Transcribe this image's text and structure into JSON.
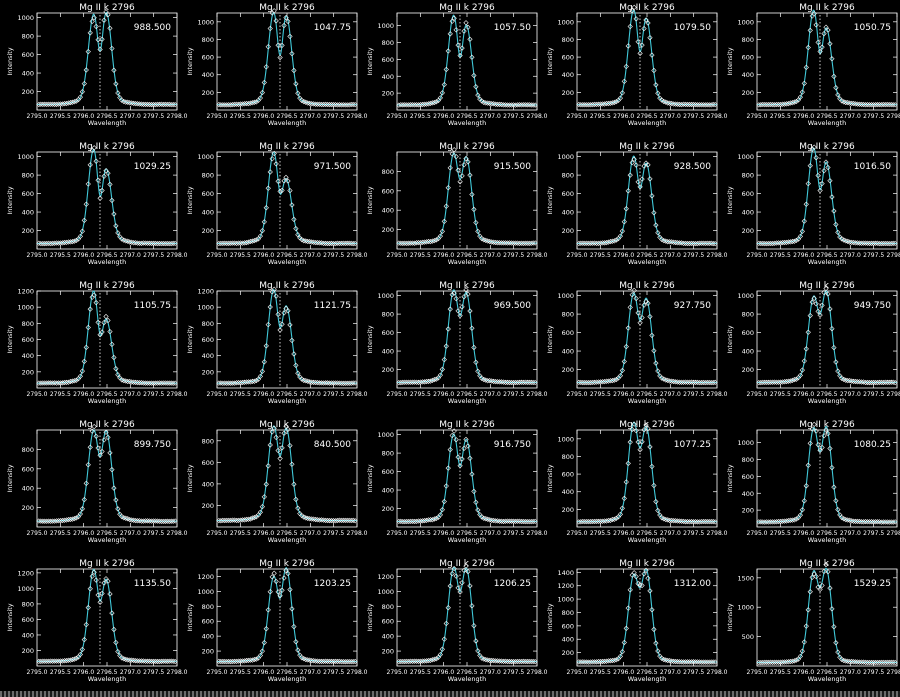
{
  "figure": {
    "panel_title": "Mg II k 2796",
    "xlabel": "Wavelength",
    "ylabel": "Intensity",
    "xticks": [
      "2795.0",
      "2795.5",
      "2796.0",
      "2796.5",
      "2797.0",
      "2797.5",
      "2798.0"
    ],
    "colors": {
      "background": "#000000",
      "axes": "#ffffff",
      "fit_line": "#40c8d8",
      "data_points": "#ffffff"
    }
  },
  "chart_data": [
    {
      "type": "line",
      "title": "Mg II k 2796",
      "value_label": "988.500",
      "xlabel": "Wavelength",
      "ylabel": "Intensity",
      "xlim": [
        2795.0,
        2798.0
      ],
      "ylim": [
        0,
        1050
      ],
      "yticks": [
        200,
        400,
        600,
        800,
        1000
      ],
      "peaks": [
        930,
        950
      ],
      "dip": 590,
      "continuum": 60,
      "center": 2796.35,
      "series": [
        {
          "values": []
        }
      ]
    },
    {
      "type": "line",
      "title": "Mg II k 2796",
      "value_label": "1047.75",
      "xlabel": "Wavelength",
      "ylabel": "Intensity",
      "xlim": [
        2795.0,
        2798.0
      ],
      "ylim": [
        0,
        1100
      ],
      "yticks": [
        200,
        400,
        600,
        800,
        1000
      ],
      "peaks": [
        1000,
        960
      ],
      "dip": 570,
      "continuum": 60,
      "center": 2796.35,
      "series": [
        {
          "values": []
        }
      ]
    },
    {
      "type": "line",
      "title": "Mg II k 2796",
      "value_label": "1057.50",
      "xlabel": "Wavelength",
      "ylabel": "Intensity",
      "xlim": [
        2795.0,
        2798.0
      ],
      "ylim": [
        0,
        1150
      ],
      "yticks": [
        200,
        400,
        600,
        800,
        1000
      ],
      "peaks": [
        1020,
        900
      ],
      "dip": 580,
      "continuum": 60,
      "center": 2796.35,
      "series": [
        {
          "values": []
        }
      ]
    },
    {
      "type": "line",
      "title": "Mg II k 2796",
      "value_label": "1079.50",
      "xlabel": "Wavelength",
      "ylabel": "Intensity",
      "xlim": [
        2795.0,
        2798.0
      ],
      "ylim": [
        0,
        1100
      ],
      "yticks": [
        200,
        400,
        600,
        800,
        1000
      ],
      "peaks": [
        1030,
        930
      ],
      "dip": 620,
      "continuum": 60,
      "center": 2796.35,
      "series": [
        {
          "values": []
        }
      ]
    },
    {
      "type": "line",
      "title": "Mg II k 2796",
      "value_label": "1050.75",
      "xlabel": "Wavelength",
      "ylabel": "Intensity",
      "xlim": [
        2795.0,
        2798.0
      ],
      "ylim": [
        0,
        1100
      ],
      "yticks": [
        200,
        400,
        600,
        800,
        1000
      ],
      "peaks": [
        1030,
        820
      ],
      "dip": 600,
      "continuum": 60,
      "center": 2796.35,
      "series": [
        {
          "values": []
        }
      ]
    },
    {
      "type": "line",
      "title": "Mg II k 2796",
      "value_label": "1029.25",
      "xlabel": "Wavelength",
      "ylabel": "Intensity",
      "xlim": [
        2795.0,
        2798.0
      ],
      "ylim": [
        0,
        1050
      ],
      "yticks": [
        200,
        400,
        600,
        800,
        1000
      ],
      "peaks": [
        980,
        760
      ],
      "dip": 520,
      "continuum": 60,
      "center": 2796.35,
      "series": [
        {
          "values": []
        }
      ]
    },
    {
      "type": "line",
      "title": "Mg II k 2796",
      "value_label": "971.500",
      "xlabel": "Wavelength",
      "ylabel": "Intensity",
      "xlim": [
        2795.0,
        2798.0
      ],
      "ylim": [
        0,
        1050
      ],
      "yticks": [
        200,
        400,
        600,
        800,
        1000
      ],
      "peaks": [
        950,
        650
      ],
      "dip": 560,
      "continuum": 60,
      "center": 2796.35,
      "series": [
        {
          "values": []
        }
      ]
    },
    {
      "type": "line",
      "title": "Mg II k 2796",
      "value_label": "915.500",
      "xlabel": "Wavelength",
      "ylabel": "Intensity",
      "xlim": [
        2795.0,
        2798.0
      ],
      "ylim": [
        0,
        1000
      ],
      "yticks": [
        200,
        400,
        600,
        800
      ],
      "peaks": [
        880,
        840
      ],
      "dip": 690,
      "continuum": 60,
      "center": 2796.35,
      "series": [
        {
          "values": []
        }
      ]
    },
    {
      "type": "line",
      "title": "Mg II k 2796",
      "value_label": "928.500",
      "xlabel": "Wavelength",
      "ylabel": "Intensity",
      "xlim": [
        2795.0,
        2798.0
      ],
      "ylim": [
        0,
        1050
      ],
      "yticks": [
        200,
        400,
        600,
        800,
        1000
      ],
      "peaks": [
        900,
        820
      ],
      "dip": 620,
      "continuum": 60,
      "center": 2796.35,
      "series": [
        {
          "values": []
        }
      ]
    },
    {
      "type": "line",
      "title": "Mg II k 2796",
      "value_label": "1016.50",
      "xlabel": "Wavelength",
      "ylabel": "Intensity",
      "xlim": [
        2795.0,
        2798.0
      ],
      "ylim": [
        0,
        1050
      ],
      "yticks": [
        200,
        400,
        600,
        800,
        1000
      ],
      "peaks": [
        990,
        830
      ],
      "dip": 600,
      "continuum": 60,
      "center": 2796.35,
      "series": [
        {
          "values": []
        }
      ]
    },
    {
      "type": "line",
      "title": "Mg II k 2796",
      "value_label": "1105.75",
      "xlabel": "Wavelength",
      "ylabel": "Intensity",
      "xlim": [
        2795.0,
        2798.0
      ],
      "ylim": [
        0,
        1200
      ],
      "yticks": [
        200,
        400,
        600,
        800,
        1000,
        1200
      ],
      "peaks": [
        1100,
        740
      ],
      "dip": 620,
      "continuum": 60,
      "center": 2796.35,
      "series": [
        {
          "values": []
        }
      ]
    },
    {
      "type": "line",
      "title": "Mg II k 2796",
      "value_label": "1121.75",
      "xlabel": "Wavelength",
      "ylabel": "Intensity",
      "xlim": [
        2795.0,
        2798.0
      ],
      "ylim": [
        0,
        1200
      ],
      "yticks": [
        200,
        400,
        600,
        800,
        1000,
        1200
      ],
      "peaks": [
        1110,
        900
      ],
      "dip": 720,
      "continuum": 60,
      "center": 2796.35,
      "series": [
        {
          "values": []
        }
      ]
    },
    {
      "type": "line",
      "title": "Mg II k 2796",
      "value_label": "969.500",
      "xlabel": "Wavelength",
      "ylabel": "Intensity",
      "xlim": [
        2795.0,
        2798.0
      ],
      "ylim": [
        0,
        1050
      ],
      "yticks": [
        200,
        400,
        600,
        800,
        1000
      ],
      "peaks": [
        950,
        920
      ],
      "dip": 760,
      "continuum": 60,
      "center": 2796.35,
      "series": [
        {
          "values": []
        }
      ]
    },
    {
      "type": "line",
      "title": "Mg II k 2796",
      "value_label": "927.750",
      "xlabel": "Wavelength",
      "ylabel": "Intensity",
      "xlim": [
        2795.0,
        2798.0
      ],
      "ylim": [
        0,
        1050
      ],
      "yticks": [
        200,
        400,
        600,
        800,
        1000
      ],
      "peaks": [
        920,
        860
      ],
      "dip": 700,
      "continuum": 60,
      "center": 2796.35,
      "series": [
        {
          "values": []
        }
      ]
    },
    {
      "type": "line",
      "title": "Mg II k 2796",
      "value_label": "949.750",
      "xlabel": "Wavelength",
      "ylabel": "Intensity",
      "xlim": [
        2795.0,
        2798.0
      ],
      "ylim": [
        0,
        1050
      ],
      "yticks": [
        200,
        400,
        600,
        800,
        1000
      ],
      "peaks": [
        880,
        940
      ],
      "dip": 780,
      "continuum": 60,
      "center": 2796.35,
      "series": [
        {
          "values": []
        }
      ]
    },
    {
      "type": "line",
      "title": "Mg II k 2796",
      "value_label": "899.750",
      "xlabel": "Wavelength",
      "ylabel": "Intensity",
      "xlim": [
        2795.0,
        2798.0
      ],
      "ylim": [
        0,
        1000
      ],
      "yticks": [
        200,
        400,
        600,
        800
      ],
      "peaks": [
        890,
        880
      ],
      "dip": 700,
      "continuum": 60,
      "center": 2796.35,
      "series": [
        {
          "values": []
        }
      ]
    },
    {
      "type": "line",
      "title": "Mg II k 2796",
      "value_label": "840.500",
      "xlabel": "Wavelength",
      "ylabel": "Intensity",
      "xlim": [
        2795.0,
        2798.0
      ],
      "ylim": [
        0,
        900
      ],
      "yticks": [
        200,
        400,
        600,
        800
      ],
      "peaks": [
        830,
        810
      ],
      "dip": 620,
      "continuum": 60,
      "center": 2796.35,
      "series": [
        {
          "values": []
        }
      ]
    },
    {
      "type": "line",
      "title": "Mg II k 2796",
      "value_label": "916.750",
      "xlabel": "Wavelength",
      "ylabel": "Intensity",
      "xlim": [
        2795.0,
        2798.0
      ],
      "ylim": [
        0,
        1050
      ],
      "yticks": [
        200,
        400,
        600,
        800,
        1000
      ],
      "peaks": [
        900,
        840
      ],
      "dip": 620,
      "continuum": 60,
      "center": 2796.35,
      "series": [
        {
          "values": []
        }
      ]
    },
    {
      "type": "line",
      "title": "Mg II k 2796",
      "value_label": "1077.25",
      "xlabel": "Wavelength",
      "ylabel": "Intensity",
      "xlim": [
        2795.0,
        2798.0
      ],
      "ylim": [
        0,
        1100
      ],
      "yticks": [
        200,
        400,
        600,
        800,
        1000
      ],
      "peaks": [
        1070,
        1020
      ],
      "dip": 890,
      "continuum": 60,
      "center": 2796.35,
      "series": [
        {
          "values": []
        }
      ]
    },
    {
      "type": "line",
      "title": "Mg II k 2796",
      "value_label": "1080.25",
      "xlabel": "Wavelength",
      "ylabel": "Intensity",
      "xlim": [
        2795.0,
        2798.0
      ],
      "ylim": [
        0,
        1150
      ],
      "yticks": [
        200,
        400,
        600,
        800,
        1000
      ],
      "peaks": [
        1060,
        1070
      ],
      "dip": 880,
      "continuum": 60,
      "center": 2796.35,
      "series": [
        {
          "values": []
        }
      ]
    },
    {
      "type": "line",
      "title": "Mg II k 2796",
      "value_label": "1135.50",
      "xlabel": "Wavelength",
      "ylabel": "Intensity",
      "xlim": [
        2795.0,
        2798.0
      ],
      "ylim": [
        0,
        1250
      ],
      "yticks": [
        200,
        400,
        600,
        800,
        1000,
        1200
      ],
      "peaks": [
        1130,
        1000
      ],
      "dip": 820,
      "continuum": 60,
      "center": 2796.35,
      "series": [
        {
          "values": []
        }
      ]
    },
    {
      "type": "line",
      "title": "Mg II k 2796",
      "value_label": "1203.25",
      "xlabel": "Wavelength",
      "ylabel": "Intensity",
      "xlim": [
        2795.0,
        2798.0
      ],
      "ylim": [
        0,
        1300
      ],
      "yticks": [
        200,
        400,
        600,
        800,
        1000,
        1200
      ],
      "peaks": [
        1080,
        1200
      ],
      "dip": 900,
      "continuum": 60,
      "center": 2796.35,
      "series": [
        {
          "values": []
        }
      ]
    },
    {
      "type": "line",
      "title": "Mg II k 2796",
      "value_label": "1206.25",
      "xlabel": "Wavelength",
      "ylabel": "Intensity",
      "xlim": [
        2795.0,
        2798.0
      ],
      "ylim": [
        0,
        1300
      ],
      "yticks": [
        200,
        400,
        600,
        800,
        1000,
        1200
      ],
      "peaks": [
        1200,
        1190
      ],
      "dip": 1000,
      "continuum": 60,
      "center": 2796.35,
      "series": [
        {
          "values": []
        }
      ]
    },
    {
      "type": "line",
      "title": "Mg II k 2796",
      "value_label": "1312.00",
      "xlabel": "Wavelength",
      "ylabel": "Intensity",
      "xlim": [
        2795.0,
        2798.0
      ],
      "ylim": [
        0,
        1450
      ],
      "yticks": [
        200,
        400,
        600,
        800,
        1000,
        1200,
        1400
      ],
      "peaks": [
        1240,
        1310
      ],
      "dip": 1200,
      "continuum": 60,
      "center": 2796.35,
      "series": [
        {
          "values": []
        }
      ]
    },
    {
      "type": "line",
      "title": "Mg II k 2796",
      "value_label": "1529.25",
      "xlabel": "Wavelength",
      "ylabel": "Intensity",
      "xlim": [
        2795.0,
        2798.0
      ],
      "ylim": [
        0,
        1650
      ],
      "yticks": [
        500,
        1000,
        1500
      ],
      "peaks": [
        1480,
        1520
      ],
      "dip": 1380,
      "continuum": 60,
      "center": 2796.35,
      "series": [
        {
          "values": []
        }
      ]
    }
  ]
}
